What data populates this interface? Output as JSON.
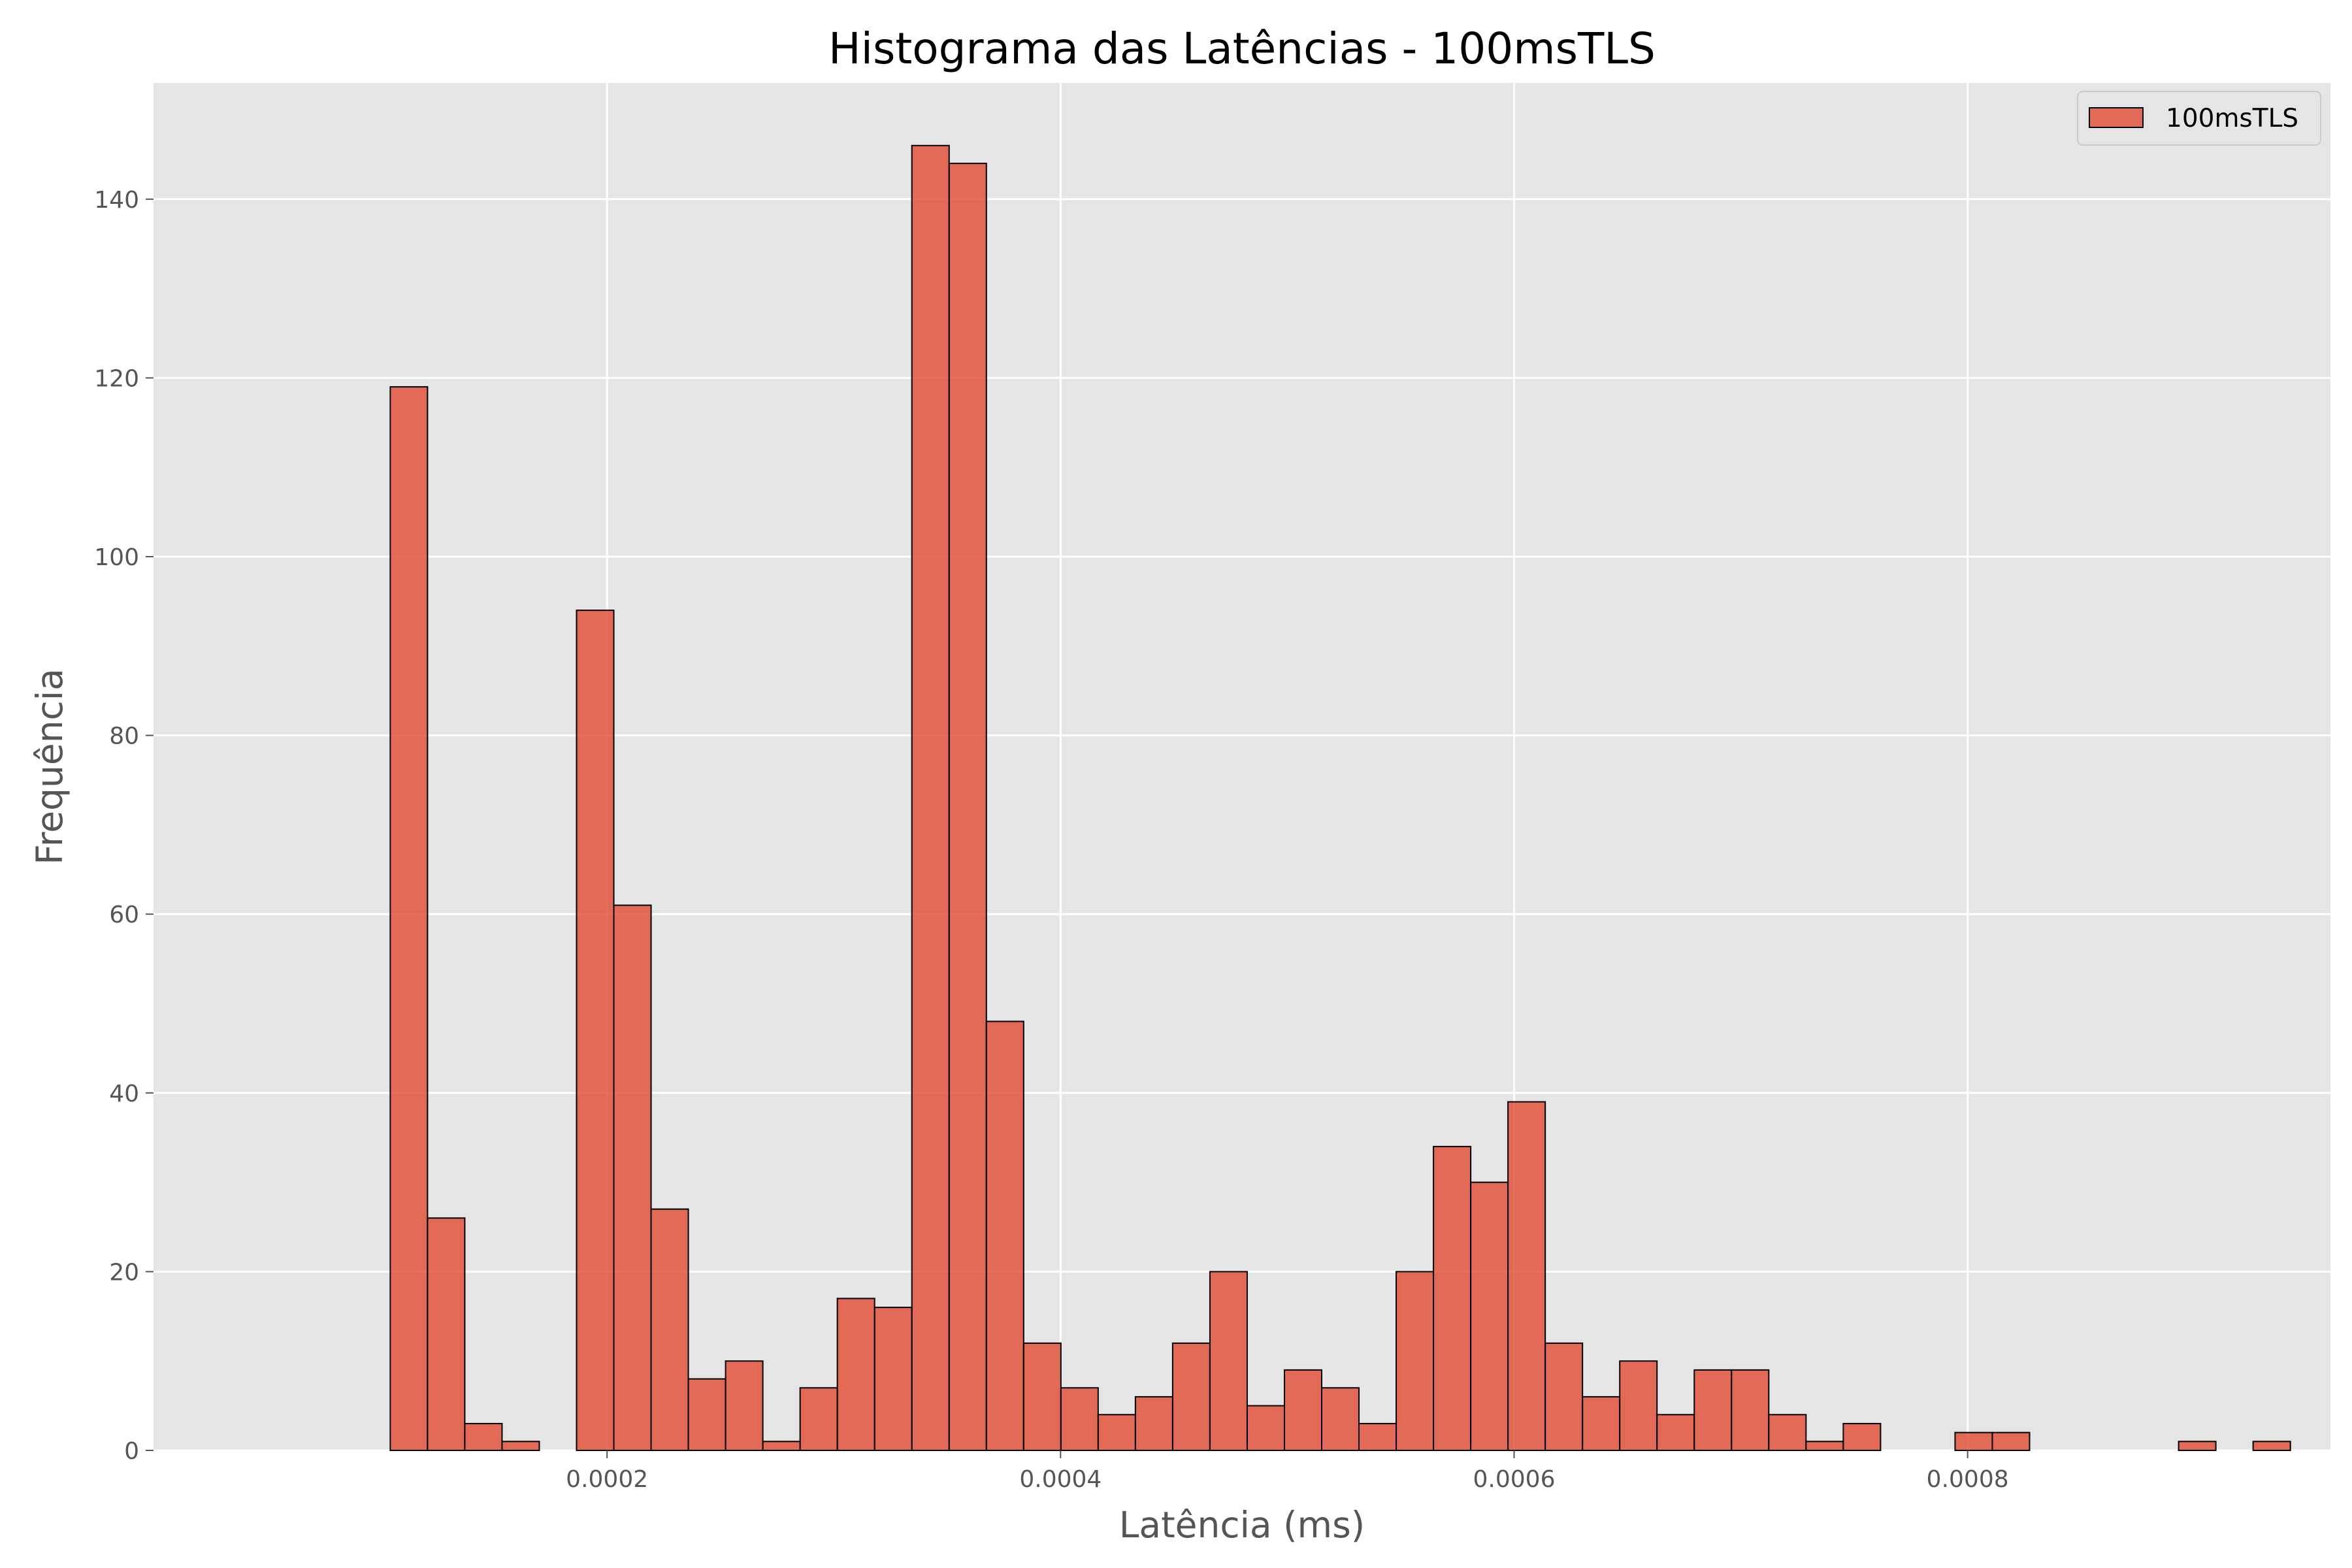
{
  "chart_data": {
    "type": "bar",
    "title": "Histograma das Latências - 100msTLS",
    "xlabel": "Latência (ms)",
    "ylabel": "Frequência",
    "xlim": [
      0.0,
      0.00096
    ],
    "ylim": [
      0,
      153
    ],
    "grid": true,
    "legend_position": "top-right",
    "x_ticks": [
      {
        "value": 0.0002,
        "label": "0.0002"
      },
      {
        "value": 0.0004,
        "label": "0.0004"
      },
      {
        "value": 0.0006,
        "label": "0.0006"
      },
      {
        "value": 0.0008,
        "label": "0.0008"
      }
    ],
    "y_ticks": [
      {
        "value": 0,
        "label": "0"
      },
      {
        "value": 20,
        "label": "20"
      },
      {
        "value": 40,
        "label": "40"
      },
      {
        "value": 60,
        "label": "60"
      },
      {
        "value": 80,
        "label": "80"
      },
      {
        "value": 100,
        "label": "100"
      },
      {
        "value": 120,
        "label": "120"
      },
      {
        "value": 140,
        "label": "140"
      }
    ],
    "bins": {
      "start": 0.0001044,
      "width": 1.643e-05
    },
    "series": [
      {
        "name": "100msTLS",
        "color": "#e24a33",
        "values": [
          119,
          26,
          3,
          1,
          0,
          94,
          61,
          27,
          8,
          10,
          1,
          7,
          17,
          16,
          146,
          144,
          48,
          12,
          7,
          4,
          6,
          12,
          20,
          5,
          9,
          7,
          3,
          20,
          34,
          30,
          39,
          12,
          6,
          10,
          4,
          9,
          9,
          4,
          1,
          3,
          0,
          0,
          2,
          2,
          0,
          0,
          0,
          0,
          1,
          0,
          1
        ]
      }
    ]
  },
  "colors": {
    "plot_background": "#e5e5e5",
    "grid": "#ffffff",
    "bar_edge": "#000000",
    "text": "#555555"
  }
}
